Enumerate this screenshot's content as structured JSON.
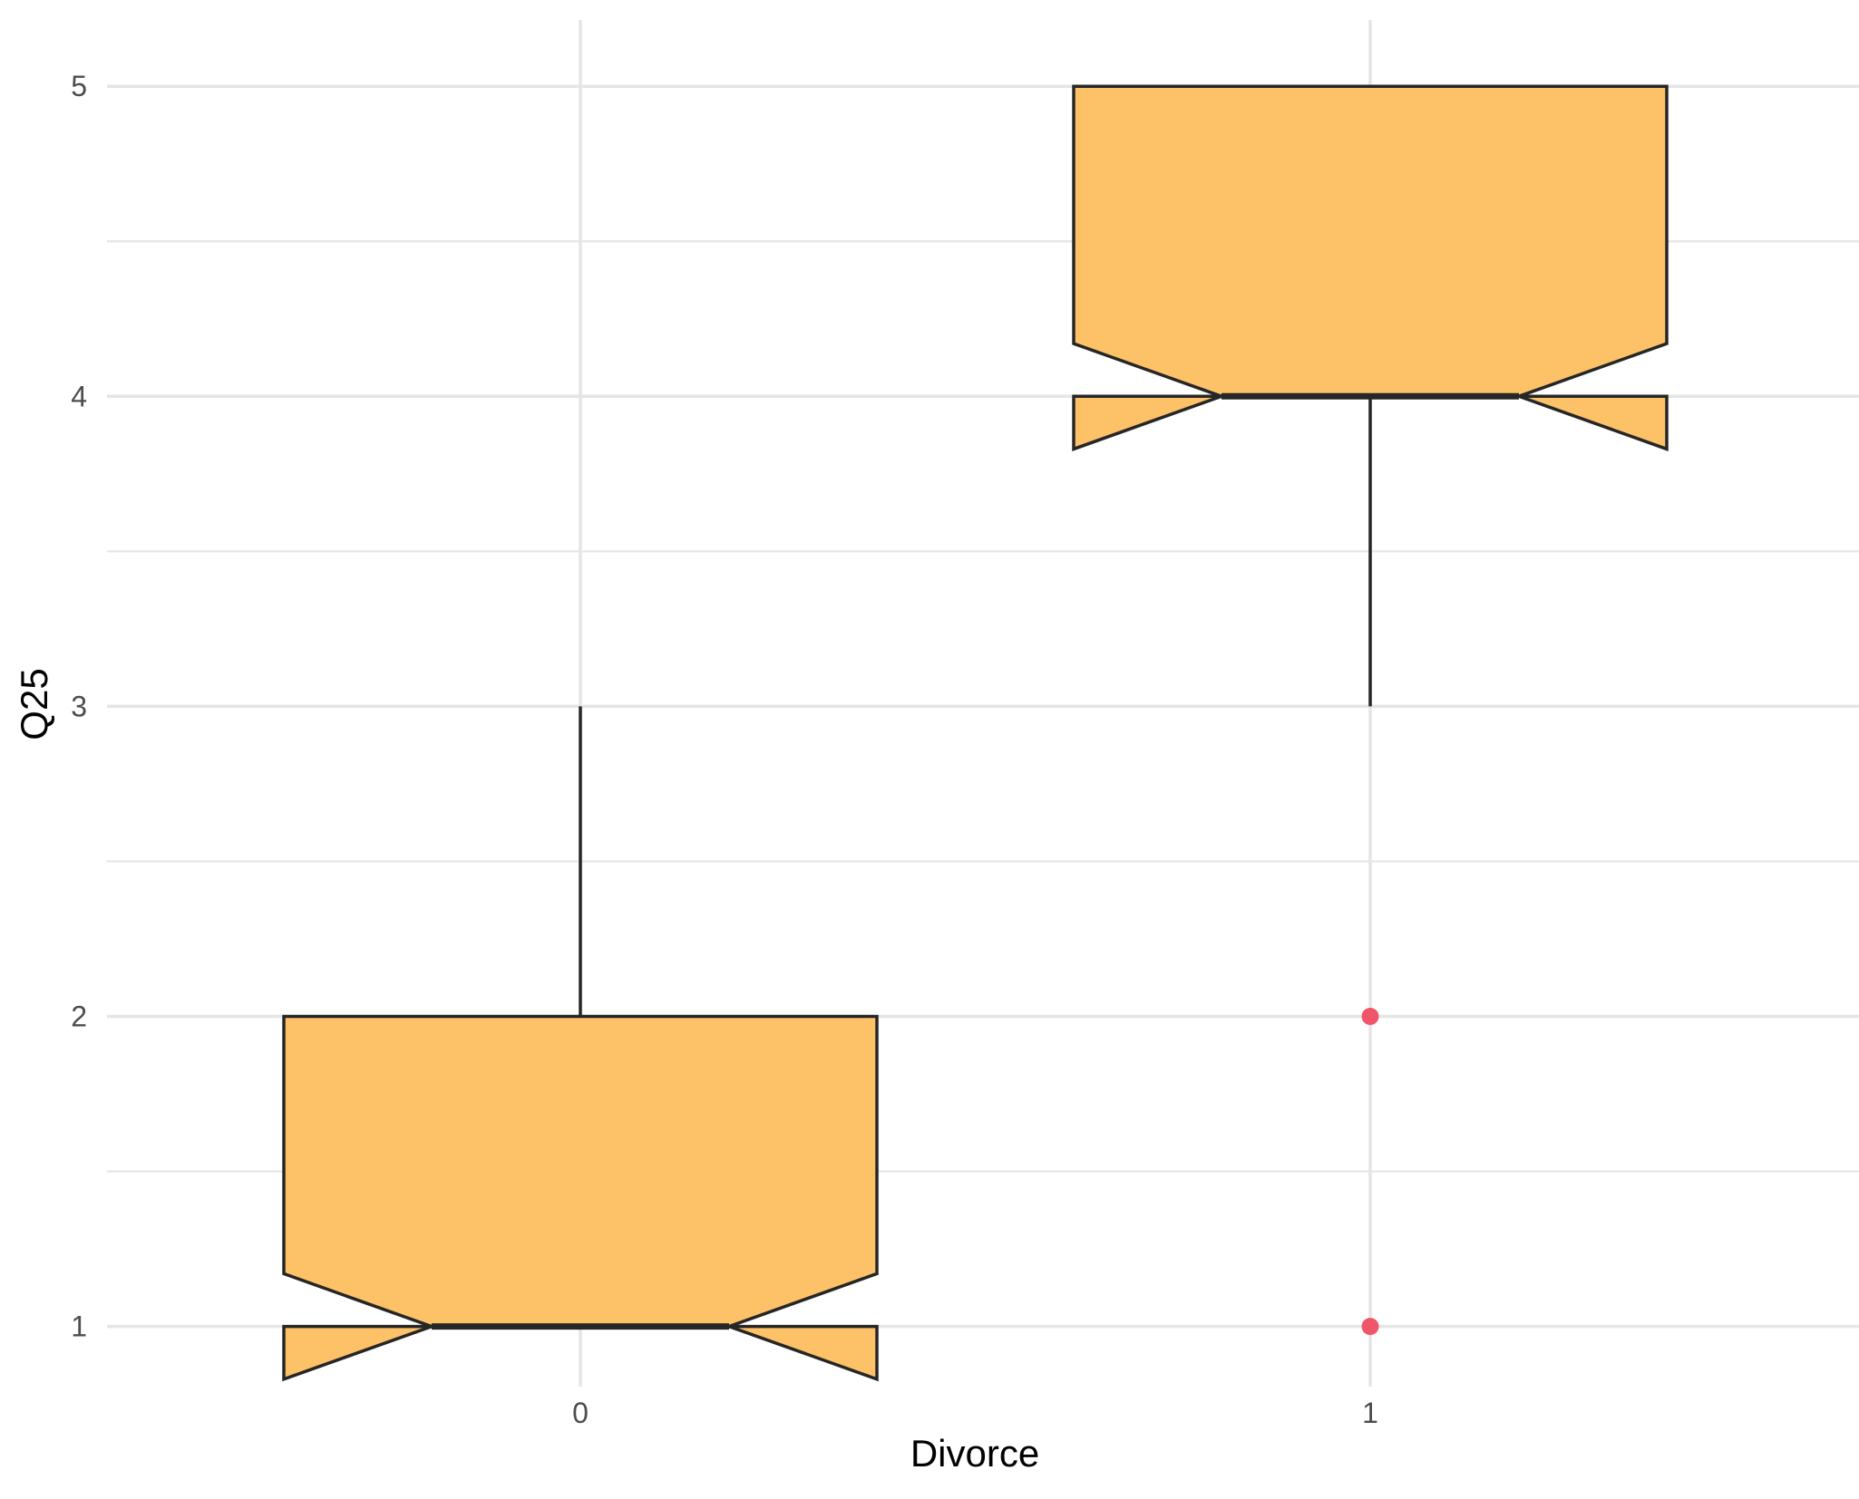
{
  "chart_data": {
    "type": "boxplot",
    "title": "",
    "xlabel": "Divorce",
    "ylabel": "Q25",
    "categories": [
      "0",
      "1"
    ],
    "ylim": [
      0.8,
      5.2
    ],
    "yticks": [
      1,
      2,
      3,
      4,
      5
    ],
    "yticks_minor": [
      1.5,
      2.5,
      3.5,
      4.5
    ],
    "notched": true,
    "grid": true,
    "legend": "none",
    "colors": {
      "box_fill": "#fdc267",
      "box_stroke": "#262626",
      "outlier": "#f0566a",
      "grid": "#e5e5e5"
    },
    "boxes": [
      {
        "category": "0",
        "q1": 1,
        "median": 1,
        "q3": 2,
        "whisker_low": 1,
        "whisker_high": 3,
        "notch_low": 0.83,
        "notch_high": 1.17,
        "outliers": []
      },
      {
        "category": "1",
        "q1": 4,
        "median": 4,
        "q3": 5,
        "whisker_low": 3,
        "whisker_high": 5,
        "notch_low": 3.83,
        "notch_high": 4.17,
        "outliers": [
          1,
          2
        ]
      }
    ]
  }
}
